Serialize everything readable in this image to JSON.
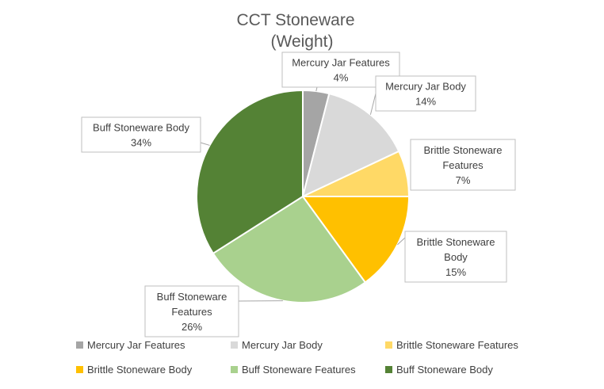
{
  "chart_data": {
    "type": "pie",
    "title": [
      "CCT Stoneware",
      "(Weight)"
    ],
    "slices": [
      {
        "name": "Mercury Jar Features",
        "value": 4,
        "label": "4%",
        "color": "#a5a5a5"
      },
      {
        "name": "Mercury Jar Body",
        "value": 14,
        "label": "14%",
        "color": "#d9d9d9"
      },
      {
        "name": "Brittle Stoneware Features",
        "value": 7,
        "label": "7%",
        "color": "#ffd966"
      },
      {
        "name": "Brittle Stoneware Body",
        "value": 15,
        "label": "15%",
        "color": "#ffc000"
      },
      {
        "name": "Buff Stoneware Features",
        "value": 26,
        "label": "26%",
        "color": "#a9d18e"
      },
      {
        "name": "Buff Stoneware Body",
        "value": 34,
        "label": "34%",
        "color": "#548235"
      }
    ],
    "legend": {
      "placement": "bottom"
    }
  }
}
